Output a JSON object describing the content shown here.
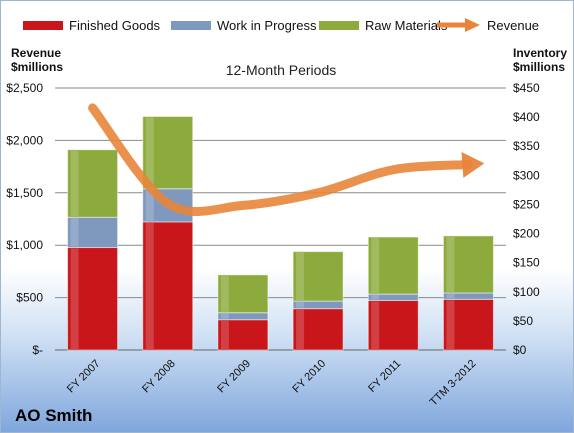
{
  "legend": {
    "finished": "Finished Goods",
    "wip": "Work in Progress",
    "raw": "Raw Materials",
    "revenue": "Revenue"
  },
  "left_axis_title": [
    "Revenue",
    "$millions"
  ],
  "right_axis_title": [
    "Inventory",
    "$millions"
  ],
  "company": "AO Smith",
  "colors": {
    "finished": "#c8161b",
    "wip": "#7f98bd",
    "raw": "#8dab3c",
    "revenue": "#e8853a"
  },
  "chart_data": {
    "type": "bar",
    "stacked": true,
    "title": "12-Month Periods",
    "categories": [
      "FY 2007",
      "FY 2008",
      "FY 2009",
      "FY 2010",
      "FY 2011",
      "TTM 3-2012"
    ],
    "series": [
      {
        "name": "Finished Goods",
        "axis": "right",
        "values": [
          176,
          220,
          52,
          71,
          85,
          87
        ]
      },
      {
        "name": "Work in Progress",
        "axis": "right",
        "values": [
          52,
          57,
          12,
          13,
          11,
          11
        ]
      },
      {
        "name": "Raw Materials",
        "axis": "right",
        "values": [
          116,
          124,
          65,
          85,
          98,
          98
        ]
      },
      {
        "name": "Revenue",
        "axis": "left",
        "type": "line",
        "values": [
          2310,
          1400,
          1380,
          1500,
          1720,
          1770
        ]
      }
    ],
    "left_axis": {
      "ylim": [
        0,
        2500
      ],
      "ticks": [
        "$-",
        "$500",
        "$1,000",
        "$1,500",
        "$2,000",
        "$2,500"
      ]
    },
    "right_axis": {
      "ylim": [
        0,
        450
      ],
      "ticks": [
        "$0",
        "$50",
        "$100",
        "$150",
        "$200",
        "$250",
        "$300",
        "$350",
        "$400",
        "$450"
      ]
    },
    "grid": true,
    "legend_position": "top"
  }
}
